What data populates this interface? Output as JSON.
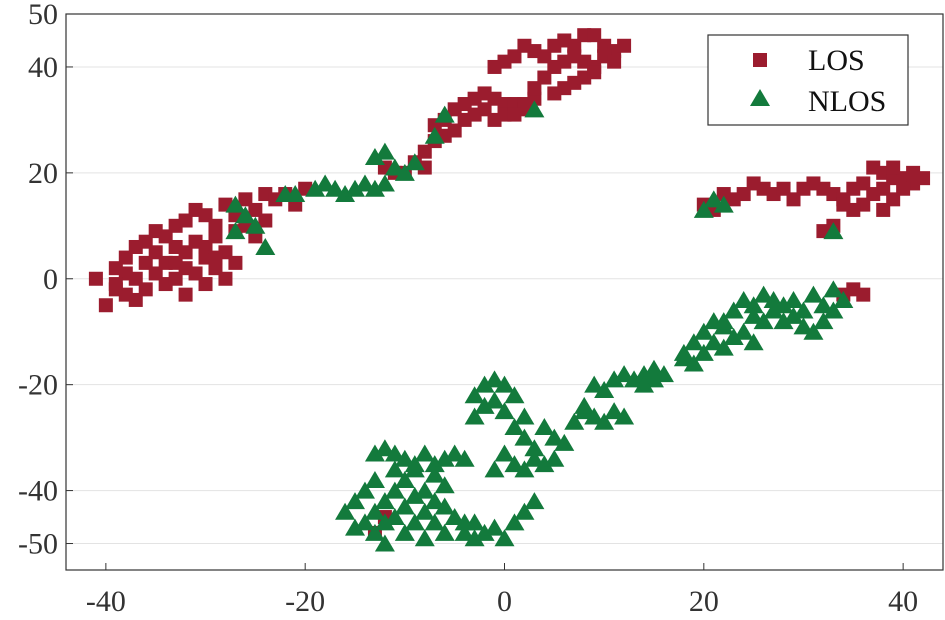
{
  "chart_data": {
    "type": "scatter",
    "title": "",
    "xlabel": "",
    "ylabel": "",
    "xlim": [
      -44,
      44
    ],
    "ylim": [
      -55,
      50
    ],
    "xticks": [
      -40,
      -20,
      0,
      20,
      40
    ],
    "yticks": [
      50,
      40,
      20,
      0,
      -20,
      -40,
      -50
    ],
    "grid": true,
    "legend_position": "top-right",
    "series": [
      {
        "name": "LOS",
        "marker": "square",
        "color": "#9b1c2e",
        "points": [
          [
            -41,
            0
          ],
          [
            -40,
            -5
          ],
          [
            -39,
            -2
          ],
          [
            -39,
            2
          ],
          [
            -38,
            -3
          ],
          [
            -38,
            4
          ],
          [
            -37,
            0
          ],
          [
            -37,
            -4
          ],
          [
            -36,
            3
          ],
          [
            -36,
            -2
          ],
          [
            -35,
            1
          ],
          [
            -35,
            5
          ],
          [
            -34,
            -1
          ],
          [
            -34,
            3
          ],
          [
            -33,
            0
          ],
          [
            -33,
            6
          ],
          [
            -32,
            -3
          ],
          [
            -32,
            2
          ],
          [
            -31,
            1
          ],
          [
            -31,
            7
          ],
          [
            -30,
            4
          ],
          [
            -30,
            -1
          ],
          [
            -29,
            2
          ],
          [
            -29,
            8
          ],
          [
            -28,
            5
          ],
          [
            -28,
            0
          ],
          [
            -27,
            3
          ],
          [
            -27,
            9
          ],
          [
            -34,
            8
          ],
          [
            -33,
            10
          ],
          [
            -32,
            11
          ],
          [
            -31,
            13
          ],
          [
            -30,
            12
          ],
          [
            -29,
            10
          ],
          [
            -28,
            14
          ],
          [
            -27,
            12
          ],
          [
            -26,
            15
          ],
          [
            -25,
            13
          ],
          [
            -24,
            16
          ],
          [
            -23,
            15
          ],
          [
            -22,
            16
          ],
          [
            -21,
            14
          ],
          [
            -20,
            17
          ],
          [
            -35,
            9
          ],
          [
            -36,
            7
          ],
          [
            -30,
            6
          ],
          [
            -29,
            4
          ],
          [
            -26,
            10
          ],
          [
            -25,
            8
          ],
          [
            -24,
            11
          ],
          [
            -32,
            5
          ],
          [
            -33,
            3
          ],
          [
            -38,
            1
          ],
          [
            -39,
            -1
          ],
          [
            -37,
            6
          ],
          [
            -8,
            24
          ],
          [
            -7,
            26
          ],
          [
            -6,
            27
          ],
          [
            -9,
            22
          ],
          [
            -10,
            20
          ],
          [
            -6,
            30
          ],
          [
            -5,
            32
          ],
          [
            -4,
            33
          ],
          [
            -3,
            34
          ],
          [
            -2,
            35
          ],
          [
            -1,
            34
          ],
          [
            0,
            33
          ],
          [
            -4,
            30
          ],
          [
            -3,
            31
          ],
          [
            -2,
            32
          ],
          [
            -1,
            30
          ],
          [
            0,
            31
          ],
          [
            1,
            33
          ],
          [
            2,
            32
          ],
          [
            3,
            34
          ],
          [
            -11,
            20
          ],
          [
            -12,
            21
          ],
          [
            -8,
            21
          ],
          [
            -5,
            28
          ],
          [
            -7,
            29
          ],
          [
            -1,
            40
          ],
          [
            0,
            41
          ],
          [
            1,
            42
          ],
          [
            2,
            44
          ],
          [
            3,
            43
          ],
          [
            4,
            42
          ],
          [
            5,
            44
          ],
          [
            6,
            45
          ],
          [
            7,
            44
          ],
          [
            8,
            46
          ],
          [
            9,
            46
          ],
          [
            10,
            44
          ],
          [
            11,
            43
          ],
          [
            12,
            44
          ],
          [
            4,
            38
          ],
          [
            5,
            40
          ],
          [
            6,
            41
          ],
          [
            7,
            42
          ],
          [
            8,
            41
          ],
          [
            9,
            40
          ],
          [
            10,
            42
          ],
          [
            11,
            41
          ],
          [
            6,
            36
          ],
          [
            7,
            37
          ],
          [
            8,
            38
          ],
          [
            9,
            39
          ],
          [
            3,
            36
          ],
          [
            2,
            33
          ],
          [
            1,
            31
          ],
          [
            5,
            35
          ],
          [
            20,
            14
          ],
          [
            21,
            13
          ],
          [
            22,
            16
          ],
          [
            23,
            15
          ],
          [
            24,
            16
          ],
          [
            25,
            18
          ],
          [
            26,
            17
          ],
          [
            27,
            16
          ],
          [
            28,
            17
          ],
          [
            29,
            15
          ],
          [
            30,
            17
          ],
          [
            31,
            18
          ],
          [
            32,
            17
          ],
          [
            33,
            16
          ],
          [
            34,
            15
          ],
          [
            35,
            17
          ],
          [
            36,
            18
          ],
          [
            37,
            21
          ],
          [
            38,
            20
          ],
          [
            39,
            19
          ],
          [
            40,
            19
          ],
          [
            41,
            18
          ],
          [
            42,
            19
          ],
          [
            36,
            14
          ],
          [
            37,
            16
          ],
          [
            38,
            17
          ],
          [
            39,
            15
          ],
          [
            35,
            13
          ],
          [
            34,
            14
          ],
          [
            33,
            10
          ],
          [
            32,
            9
          ],
          [
            38,
            13
          ],
          [
            41,
            20
          ],
          [
            40,
            17
          ],
          [
            39,
            21
          ],
          [
            34,
            -3
          ],
          [
            35,
            -2
          ],
          [
            36,
            -3
          ],
          [
            -13,
            -48
          ],
          [
            -12,
            -45
          ]
        ]
      },
      {
        "name": "NLOS",
        "marker": "triangle",
        "color": "#137a3c",
        "points": [
          [
            -27,
            14
          ],
          [
            -26,
            12
          ],
          [
            -27,
            9
          ],
          [
            -25,
            10
          ],
          [
            -24,
            6
          ],
          [
            -22,
            16
          ],
          [
            -21,
            16
          ],
          [
            -19,
            17
          ],
          [
            -18,
            18
          ],
          [
            -17,
            17
          ],
          [
            -16,
            16
          ],
          [
            -15,
            17
          ],
          [
            -14,
            18
          ],
          [
            -13,
            17
          ],
          [
            -12,
            18
          ],
          [
            -11,
            21
          ],
          [
            -10,
            20
          ],
          [
            -9,
            22
          ],
          [
            -12,
            24
          ],
          [
            -13,
            23
          ],
          [
            -7,
            27
          ],
          [
            -6,
            31
          ],
          [
            3,
            32
          ],
          [
            21,
            15
          ],
          [
            22,
            14
          ],
          [
            20,
            13
          ],
          [
            33,
            9
          ],
          [
            -16,
            -44
          ],
          [
            -15,
            -47
          ],
          [
            -15,
            -42
          ],
          [
            -14,
            -46
          ],
          [
            -14,
            -40
          ],
          [
            -13,
            -48
          ],
          [
            -13,
            -44
          ],
          [
            -13,
            -38
          ],
          [
            -12,
            -46
          ],
          [
            -12,
            -42
          ],
          [
            -12,
            -50
          ],
          [
            -11,
            -45
          ],
          [
            -11,
            -40
          ],
          [
            -11,
            -36
          ],
          [
            -10,
            -48
          ],
          [
            -10,
            -43
          ],
          [
            -10,
            -38
          ],
          [
            -9,
            -46
          ],
          [
            -9,
            -41
          ],
          [
            -9,
            -36
          ],
          [
            -8,
            -49
          ],
          [
            -8,
            -44
          ],
          [
            -8,
            -40
          ],
          [
            -7,
            -46
          ],
          [
            -7,
            -42
          ],
          [
            -7,
            -37
          ],
          [
            -6,
            -48
          ],
          [
            -6,
            -43
          ],
          [
            -6,
            -39
          ],
          [
            -5,
            -45
          ],
          [
            -4,
            -48
          ],
          [
            -4,
            -46
          ],
          [
            -3,
            -49
          ],
          [
            -3,
            -46
          ],
          [
            -2,
            -48
          ],
          [
            -1,
            -47
          ],
          [
            0,
            -49
          ],
          [
            1,
            -46
          ],
          [
            2,
            -44
          ],
          [
            3,
            -42
          ],
          [
            -13,
            -33
          ],
          [
            -12,
            -32
          ],
          [
            -11,
            -33
          ],
          [
            -10,
            -34
          ],
          [
            -9,
            -35
          ],
          [
            -8,
            -33
          ],
          [
            -7,
            -35
          ],
          [
            -6,
            -34
          ],
          [
            -5,
            -33
          ],
          [
            -4,
            -34
          ],
          [
            -3,
            -22
          ],
          [
            -2,
            -20
          ],
          [
            -1,
            -19
          ],
          [
            0,
            -20
          ],
          [
            -2,
            -24
          ],
          [
            -1,
            -23
          ],
          [
            0,
            -25
          ],
          [
            1,
            -22
          ],
          [
            2,
            -26
          ],
          [
            -3,
            -26
          ],
          [
            1,
            -28
          ],
          [
            2,
            -30
          ],
          [
            3,
            -32
          ],
          [
            4,
            -28
          ],
          [
            5,
            -30
          ],
          [
            3,
            -34
          ],
          [
            2,
            -36
          ],
          [
            1,
            -35
          ],
          [
            0,
            -33
          ],
          [
            -1,
            -36
          ],
          [
            4,
            -35
          ],
          [
            5,
            -34
          ],
          [
            6,
            -31
          ],
          [
            7,
            -27
          ],
          [
            8,
            -25
          ],
          [
            9,
            -26
          ],
          [
            10,
            -27
          ],
          [
            11,
            -25
          ],
          [
            12,
            -26
          ],
          [
            8,
            -24
          ],
          [
            9,
            -20
          ],
          [
            10,
            -21
          ],
          [
            11,
            -19
          ],
          [
            12,
            -18
          ],
          [
            13,
            -19
          ],
          [
            14,
            -18
          ],
          [
            15,
            -17
          ],
          [
            16,
            -18
          ],
          [
            15,
            -19
          ],
          [
            14,
            -20
          ],
          [
            18,
            -14
          ],
          [
            19,
            -12
          ],
          [
            20,
            -10
          ],
          [
            21,
            -8
          ],
          [
            22,
            -9
          ],
          [
            23,
            -6
          ],
          [
            24,
            -4
          ],
          [
            25,
            -5
          ],
          [
            26,
            -3
          ],
          [
            27,
            -4
          ],
          [
            28,
            -5
          ],
          [
            29,
            -4
          ],
          [
            30,
            -6
          ],
          [
            31,
            -3
          ],
          [
            32,
            -5
          ],
          [
            33,
            -2
          ],
          [
            34,
            -4
          ],
          [
            29,
            -7
          ],
          [
            30,
            -9
          ],
          [
            31,
            -10
          ],
          [
            32,
            -8
          ],
          [
            33,
            -6
          ],
          [
            26,
            -8
          ],
          [
            27,
            -6
          ],
          [
            28,
            -8
          ],
          [
            24,
            -10
          ],
          [
            25,
            -12
          ],
          [
            23,
            -11
          ],
          [
            22,
            -13
          ],
          [
            21,
            -12
          ],
          [
            20,
            -14
          ],
          [
            19,
            -16
          ],
          [
            18,
            -15
          ],
          [
            22,
            -8
          ],
          [
            25,
            -7
          ]
        ]
      }
    ]
  }
}
